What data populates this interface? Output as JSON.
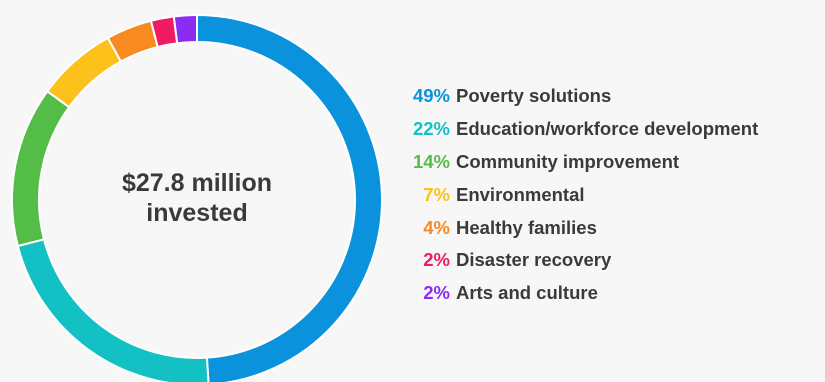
{
  "chart_data": {
    "type": "pie",
    "donut": true,
    "center_label": [
      "$27.8 million",
      "invested"
    ],
    "legend_placement": "right",
    "slices": [
      {
        "label": "Poverty solutions",
        "value": 49,
        "display": "49%",
        "color": "#0a92dc"
      },
      {
        "label": "Education/workforce development",
        "value": 22,
        "display": "22%",
        "color": "#13c1c4"
      },
      {
        "label": "Community improvement",
        "value": 14,
        "display": "14%",
        "color": "#54bd48"
      },
      {
        "label": "Environmental",
        "value": 7,
        "display": "7%",
        "color": "#fcc11b"
      },
      {
        "label": "Healthy families",
        "value": 4,
        "display": "4%",
        "color": "#f78b21"
      },
      {
        "label": "Disaster recovery",
        "value": 2,
        "display": "2%",
        "color": "#ee1a62"
      },
      {
        "label": "Arts and culture",
        "value": 2,
        "display": "2%",
        "color": "#8b2cf2"
      }
    ]
  }
}
